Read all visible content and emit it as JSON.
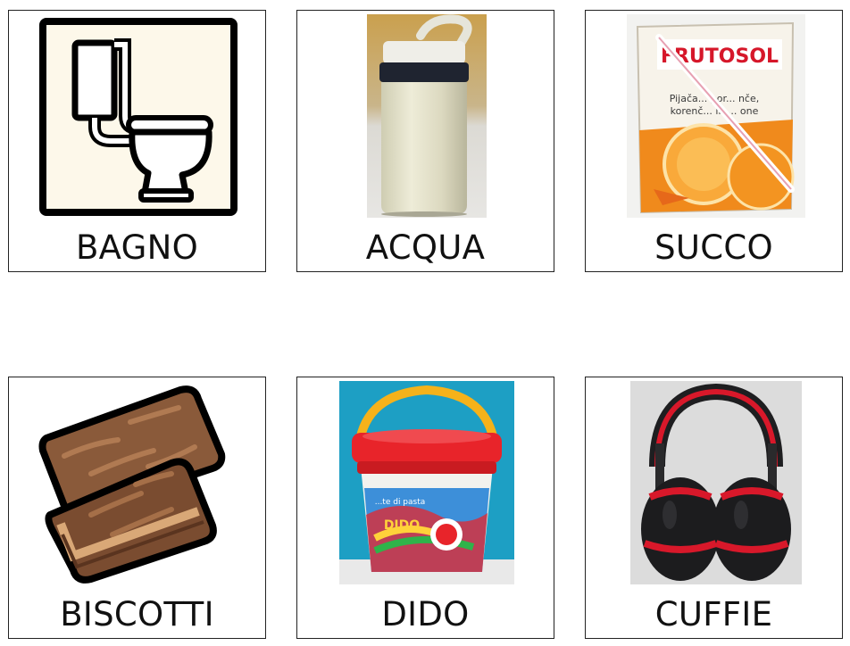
{
  "cards": [
    {
      "label": "BAGNO",
      "icon": "toilet-icon"
    },
    {
      "label": "ACQUA",
      "icon": "water-bottle-photo"
    },
    {
      "label": "SUCCO",
      "icon": "juice-box-photo",
      "package_text": {
        "brand": "FRUTOSOL",
        "line1": "Pijača... por... nče,",
        "line2": "korenč... in ... one"
      }
    },
    {
      "label": "BISCOTTI",
      "icon": "wafer-biscuit-icon"
    },
    {
      "label": "DIDO",
      "icon": "play-dough-bucket-photo",
      "package_text": {
        "brand": "DIDO",
        "line1": "...te di pasta"
      }
    },
    {
      "label": "CUFFIE",
      "icon": "ear-muffs-photo"
    }
  ],
  "colors": {
    "card_border": "#222222",
    "text": "#111111",
    "toilet_bg": "#fdf8ea",
    "biscuit": "#8a5a3a",
    "dido_lid": "#e8242a",
    "dido_handle": "#f5b21a",
    "muffs_red": "#d8182a"
  }
}
